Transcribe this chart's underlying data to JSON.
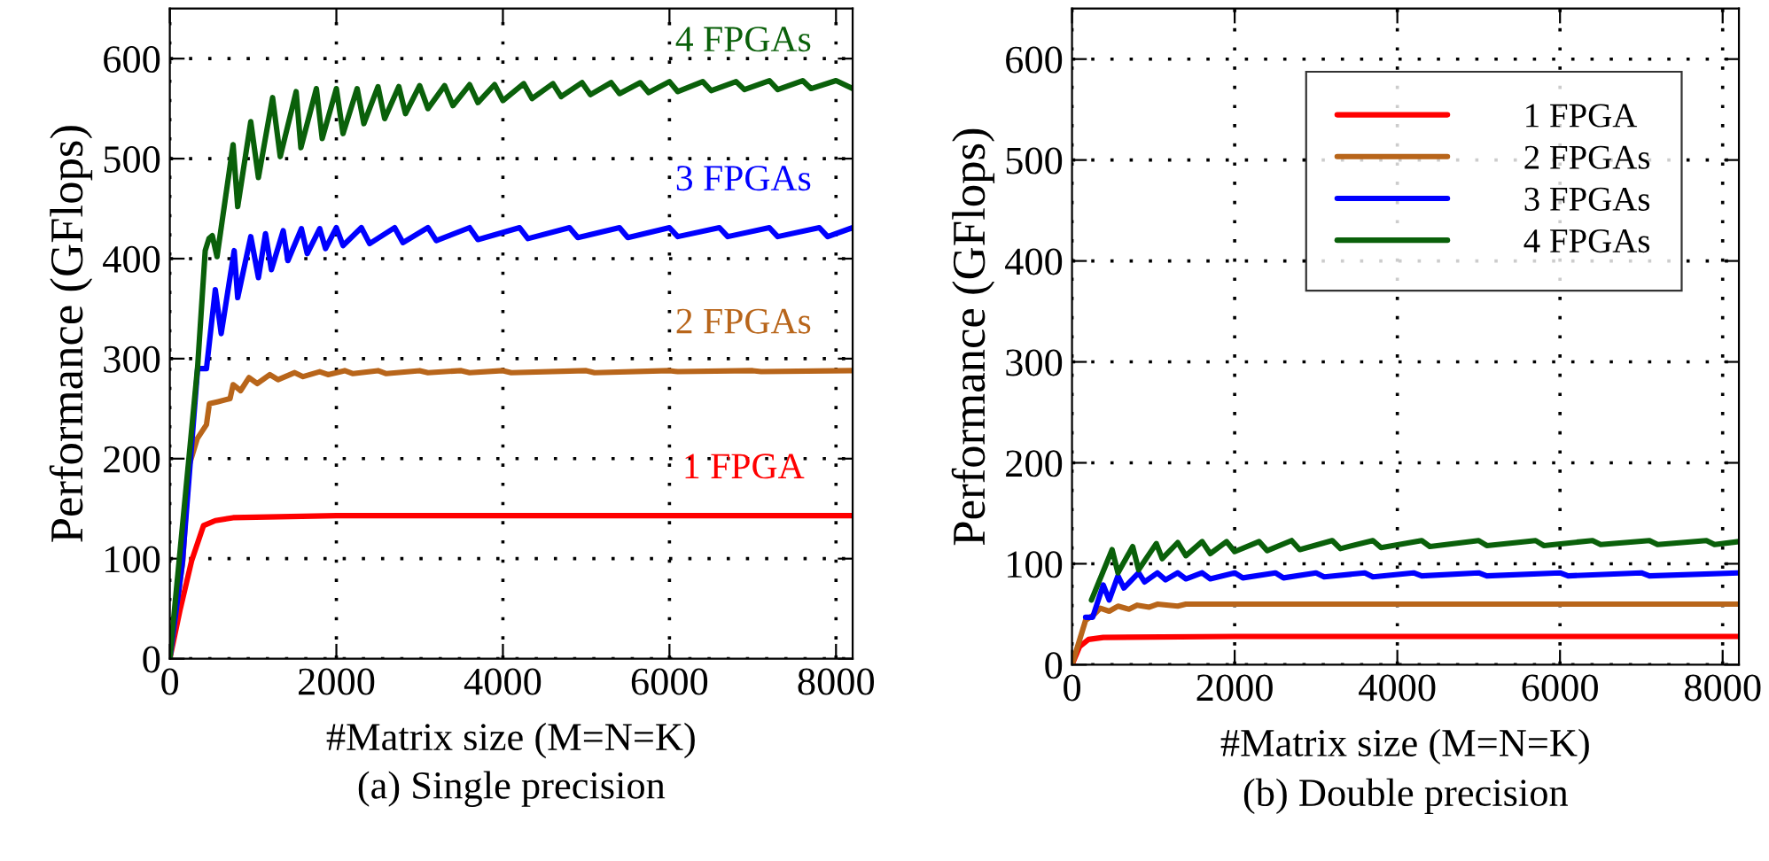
{
  "chart_data": [
    {
      "type": "line",
      "title": "(a) Single precision",
      "xlabel": "#Matrix size (M=N=K)",
      "ylabel": "Performance (GFlops)",
      "xlim": [
        0,
        8200
      ],
      "ylim": [
        0,
        650
      ],
      "xticks": [
        0,
        2000,
        4000,
        6000,
        8000
      ],
      "yticks": [
        0,
        100,
        200,
        300,
        400,
        500,
        600
      ],
      "grid": true,
      "legend": false,
      "marker": "none",
      "line_style": "solid",
      "series": [
        {
          "name": "1 FPGA",
          "color": "#ff0000",
          "x": [
            0,
            121,
            262,
            404,
            546,
            760,
            2000,
            4000,
            6000,
            8200
          ],
          "values": [
            0,
            48,
            98,
            133,
            138,
            141,
            143,
            143,
            143,
            143
          ]
        },
        {
          "name": "2 FPGAs",
          "color": "#b8651a",
          "x": [
            0,
            156,
            227,
            330,
            440,
            475,
            580,
            723,
            760,
            850,
            950,
            1050,
            1200,
            1300,
            1500,
            1600,
            1800,
            1900,
            2100,
            2200,
            2500,
            2600,
            3000,
            3100,
            3500,
            3600,
            4000,
            4100,
            5000,
            5100,
            6000,
            6100,
            7000,
            7100,
            8200
          ],
          "values": [
            0,
            98,
            192,
            220,
            234,
            255,
            257,
            260,
            274,
            268,
            281,
            275,
            284,
            279,
            286,
            282,
            287,
            284,
            288,
            285,
            288,
            285,
            288,
            286,
            288,
            286,
            288,
            286,
            288,
            286,
            288,
            287,
            288,
            287,
            288
          ]
        },
        {
          "name": "3 FPGAs",
          "color": "#0000ff",
          "x": [
            0,
            150,
            334,
            440,
            546,
            617,
            773,
            815,
            972,
            1064,
            1149,
            1220,
            1362,
            1418,
            1580,
            1650,
            1800,
            1870,
            2000,
            2080,
            2300,
            2400,
            2700,
            2800,
            3100,
            3200,
            3600,
            3700,
            4200,
            4300,
            4800,
            4900,
            5400,
            5500,
            6000,
            6100,
            6600,
            6700,
            7200,
            7300,
            7800,
            7900,
            8200
          ],
          "values": [
            0,
            95,
            290,
            290,
            369,
            325,
            408,
            361,
            422,
            381,
            425,
            389,
            428,
            398,
            430,
            405,
            430,
            410,
            431,
            413,
            431,
            415,
            431,
            416,
            431,
            418,
            431,
            419,
            431,
            420,
            431,
            421,
            431,
            421,
            431,
            422,
            431,
            422,
            431,
            422,
            431,
            422,
            431
          ]
        },
        {
          "name": "4 FPGAs",
          "color": "#0a600a",
          "x": [
            0,
            334,
            425,
            470,
            510,
            567,
            760,
            815,
            972,
            1064,
            1234,
            1326,
            1517,
            1574,
            1760,
            1830,
            2000,
            2080,
            2250,
            2330,
            2500,
            2580,
            2750,
            2830,
            3000,
            3100,
            3300,
            3400,
            3600,
            3700,
            3900,
            4000,
            4250,
            4350,
            4600,
            4700,
            4950,
            5050,
            5300,
            5400,
            5650,
            5750,
            6000,
            6100,
            6400,
            6500,
            6800,
            6900,
            7200,
            7300,
            7600,
            7700,
            8000,
            8200
          ],
          "values": [
            0,
            292,
            408,
            420,
            423,
            402,
            514,
            452,
            537,
            481,
            561,
            502,
            567,
            511,
            570,
            520,
            570,
            525,
            570,
            535,
            572,
            540,
            572,
            545,
            573,
            550,
            573,
            553,
            574,
            556,
            574,
            558,
            575,
            560,
            575,
            562,
            576,
            564,
            576,
            565,
            576,
            566,
            577,
            567,
            577,
            568,
            577,
            569,
            578,
            569,
            578,
            570,
            578,
            570
          ]
        }
      ]
    },
    {
      "type": "line",
      "title": "(b) Double precision",
      "xlabel": "#Matrix size (M=N=K)",
      "ylabel": "Performance (GFlops)",
      "xlim": [
        0,
        8200
      ],
      "ylim": [
        0,
        650
      ],
      "xticks": [
        0,
        2000,
        4000,
        6000,
        8000
      ],
      "yticks": [
        0,
        100,
        200,
        300,
        400,
        500,
        600
      ],
      "grid": true,
      "legend": "top right",
      "marker": "none",
      "line_style": "solid",
      "series": [
        {
          "name": "1 FPGA",
          "color": "#ff0000",
          "x": [
            0,
            94,
            203,
            384,
            2000,
            4000,
            8200
          ],
          "values": [
            0,
            18,
            25,
            27,
            28,
            28,
            28
          ]
        },
        {
          "name": "2 FPGAs",
          "color": "#b8651a",
          "x": [
            0,
            167,
            275,
            348,
            457,
            565,
            700,
            800,
            950,
            1050,
            1300,
            1400,
            2000,
            4000,
            8200
          ],
          "values": [
            0,
            44,
            50,
            56,
            53,
            58,
            55,
            59,
            57,
            60,
            58,
            60,
            60,
            60,
            60
          ]
        },
        {
          "name": "3 FPGAs",
          "color": "#0000ff",
          "x": [
            167,
            254,
            384,
            457,
            565,
            638,
            819,
            891,
            1050,
            1150,
            1300,
            1400,
            1600,
            1700,
            2000,
            2100,
            2500,
            2600,
            3000,
            3100,
            3600,
            3700,
            4200,
            4300,
            5000,
            5100,
            6000,
            6100,
            7000,
            7100,
            8200
          ],
          "values": [
            47,
            47,
            79,
            64,
            88,
            76,
            91,
            82,
            91,
            84,
            91,
            85,
            91,
            85,
            91,
            86,
            91,
            86,
            91,
            87,
            91,
            87,
            91,
            88,
            91,
            88,
            91,
            88,
            91,
            88,
            91
          ]
        },
        {
          "name": "4 FPGAs",
          "color": "#0a600a",
          "x": [
            239,
            493,
            565,
            746,
            819,
            1036,
            1109,
            1300,
            1400,
            1600,
            1700,
            1900,
            2000,
            2300,
            2400,
            2700,
            2800,
            3200,
            3300,
            3700,
            3800,
            4300,
            4400,
            5000,
            5100,
            5700,
            5800,
            6400,
            6500,
            7100,
            7200,
            7800,
            7900,
            8200
          ],
          "values": [
            64,
            114,
            91,
            117,
            94,
            120,
            105,
            121,
            108,
            122,
            110,
            122,
            112,
            122,
            113,
            123,
            114,
            123,
            115,
            123,
            116,
            123,
            117,
            123,
            118,
            123,
            118,
            123,
            119,
            123,
            119,
            123,
            119,
            122
          ]
        }
      ]
    }
  ]
}
